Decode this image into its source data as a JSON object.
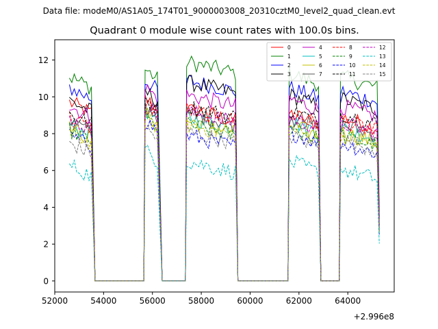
{
  "suptitle": "Data file: modeM0/AS1A05_174T01_9000003008_20310cztM0_level2_quad_clean.evt",
  "chart_data": {
    "type": "line",
    "title": "Quadrant 0 module wise count rates with 100.0s bins.",
    "xlabel": "",
    "ylabel": "",
    "x_offset_label": "+2.996e8",
    "xlim": [
      52000,
      65900
    ],
    "ylim": [
      -0.6,
      13.1
    ],
    "xticks": [
      52000,
      54000,
      56000,
      58000,
      60000,
      62000,
      64000
    ],
    "xtick_labels": [
      "52000",
      "54000",
      "56000",
      "58000",
      "60000",
      "62000",
      "64000"
    ],
    "yticks": [
      0,
      2,
      4,
      6,
      8,
      10,
      12
    ],
    "ytick_labels": [
      "0",
      "2",
      "4",
      "6",
      "8",
      "10",
      "12"
    ],
    "legend_position": "top-right",
    "segments": [
      [
        52600,
        53500
      ],
      [
        55700,
        56250
      ],
      [
        57400,
        59400
      ],
      [
        61600,
        62800
      ],
      [
        63700,
        65250
      ]
    ],
    "gaps_zero": [
      [
        53650,
        55650
      ],
      [
        56400,
        57350
      ],
      [
        59500,
        61550
      ],
      [
        62900,
        63650
      ]
    ],
    "series": [
      {
        "name": "0",
        "color": "#ff0000",
        "dash": "solid",
        "levels": [
          9.4,
          9.6,
          9.0,
          8.8,
          8.6
        ]
      },
      {
        "name": "1",
        "color": "#008000",
        "dash": "solid",
        "levels": [
          10.8,
          11.2,
          11.6,
          11.0,
          10.8
        ]
      },
      {
        "name": "2",
        "color": "#0000ff",
        "dash": "solid",
        "levels": [
          10.2,
          10.6,
          10.6,
          10.2,
          10.0
        ]
      },
      {
        "name": "3",
        "color": "#000000",
        "dash": "solid",
        "levels": [
          9.5,
          10.0,
          10.5,
          9.8,
          9.6
        ]
      },
      {
        "name": "4",
        "color": "#bf00bf",
        "dash": "solid",
        "levels": [
          9.2,
          10.2,
          9.8,
          9.6,
          9.2
        ]
      },
      {
        "name": "5",
        "color": "#00bfbf",
        "dash": "solid",
        "levels": [
          8.2,
          9.0,
          8.6,
          8.4,
          8.0
        ]
      },
      {
        "name": "6",
        "color": "#bfbf00",
        "dash": "solid",
        "levels": [
          8.0,
          8.8,
          8.4,
          8.2,
          7.8
        ]
      },
      {
        "name": "7",
        "color": "#555555",
        "dash": "solid",
        "levels": [
          8.4,
          9.2,
          8.8,
          8.6,
          8.2
        ]
      },
      {
        "name": "8",
        "color": "#ff0000",
        "dash": "dashed",
        "levels": [
          8.6,
          9.4,
          9.0,
          8.8,
          8.4
        ]
      },
      {
        "name": "9",
        "color": "#008000",
        "dash": "dashed",
        "levels": [
          7.9,
          8.6,
          8.2,
          8.0,
          7.6
        ]
      },
      {
        "name": "10",
        "color": "#0000ff",
        "dash": "dashed",
        "levels": [
          7.6,
          8.4,
          7.6,
          7.8,
          7.2
        ]
      },
      {
        "name": "11",
        "color": "#000000",
        "dash": "dashed",
        "levels": [
          8.8,
          9.6,
          9.2,
          9.0,
          8.8
        ]
      },
      {
        "name": "12",
        "color": "#bf00bf",
        "dash": "dashed",
        "levels": [
          8.5,
          9.3,
          8.9,
          8.6,
          8.3
        ]
      },
      {
        "name": "13",
        "color": "#00bfbf",
        "dash": "dashed",
        "levels": [
          6.0,
          6.8,
          6.2,
          6.2,
          5.8
        ]
      },
      {
        "name": "14",
        "color": "#bfbf00",
        "dash": "dashed",
        "levels": [
          7.8,
          8.6,
          8.2,
          8.0,
          7.6
        ]
      },
      {
        "name": "15",
        "color": "#808080",
        "dash": "dashed",
        "levels": [
          7.2,
          8.0,
          7.8,
          7.6,
          7.4
        ]
      }
    ]
  }
}
